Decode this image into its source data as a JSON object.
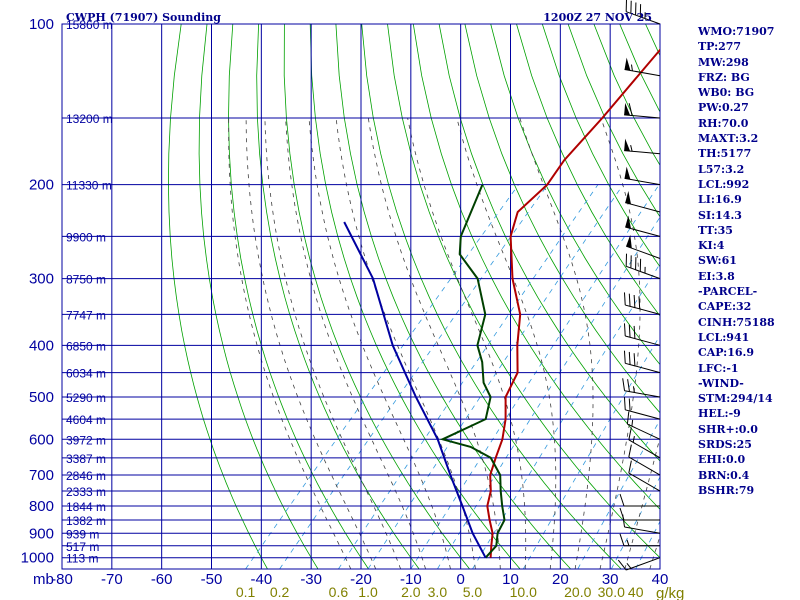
{
  "chart_data": {
    "type": "line",
    "title": "CWPH (71907) Sounding",
    "time_label": "1200Z 27 NOV 25",
    "x_axis": {
      "unit_label": "mb",
      "temp_ticks": [
        "-80",
        "-70",
        "-60",
        "-50",
        "-40",
        "-30",
        "-20",
        "-10",
        "0",
        "10",
        "20",
        "30",
        "40"
      ],
      "mixing_ratio_ticks": [
        "0.1",
        "0.2",
        "0.6",
        "1.0",
        "2.0",
        "3.0",
        "5.0",
        "10.0",
        "20.0",
        "30.0",
        "40"
      ],
      "mixing_ratio_unit": "g/kg",
      "xlim": [
        -80,
        40
      ]
    },
    "y_axis": {
      "scale": "log",
      "pressure_ticks": [
        "100",
        "200",
        "300",
        "400",
        "500",
        "600",
        "700",
        "800",
        "900",
        "1000"
      ],
      "ylim": [
        100,
        1050
      ]
    },
    "height_labels": [
      {
        "p": 100,
        "label": "15860 m"
      },
      {
        "p": 150,
        "label": "13200 m"
      },
      {
        "p": 200,
        "label": "11330 m"
      },
      {
        "p": 250,
        "label": "9900 m"
      },
      {
        "p": 300,
        "label": "8750 m"
      },
      {
        "p": 350,
        "label": "7747 m"
      },
      {
        "p": 400,
        "label": "6850 m"
      },
      {
        "p": 450,
        "label": "6034 m"
      },
      {
        "p": 500,
        "label": "5290 m"
      },
      {
        "p": 550,
        "label": "4604 m"
      },
      {
        "p": 600,
        "label": "3972 m"
      },
      {
        "p": 650,
        "label": "3387 m"
      },
      {
        "p": 700,
        "label": "2846 m"
      },
      {
        "p": 750,
        "label": "2333 m"
      },
      {
        "p": 800,
        "label": "1844 m"
      },
      {
        "p": 850,
        "label": "1382 m"
      },
      {
        "p": 900,
        "label": "939 m"
      },
      {
        "p": 950,
        "label": "517 m"
      },
      {
        "p": 1000,
        "label": "113 m"
      }
    ],
    "series": [
      {
        "color": "#b00000",
        "points": [
          [
            -52,
            100
          ],
          [
            -51,
            150
          ],
          [
            -51,
            180
          ],
          [
            -50,
            200
          ],
          [
            -51,
            225
          ],
          [
            -48,
            250
          ],
          [
            -40,
            300
          ],
          [
            -32,
            350
          ],
          [
            -27,
            400
          ],
          [
            -22,
            450
          ],
          [
            -20,
            500
          ],
          [
            -16,
            550
          ],
          [
            -13,
            600
          ],
          [
            -11,
            650
          ],
          [
            -9,
            700
          ],
          [
            -6,
            750
          ],
          [
            -4,
            800
          ],
          [
            -1,
            850
          ],
          [
            2,
            900
          ],
          [
            4,
            950
          ],
          [
            6,
            1000
          ]
        ]
      },
      {
        "color": "#004000",
        "points": [
          [
            -63,
            200
          ],
          [
            -58,
            250
          ],
          [
            -55,
            270
          ],
          [
            -47,
            300
          ],
          [
            -39,
            350
          ],
          [
            -35,
            400
          ],
          [
            -31,
            430
          ],
          [
            -27,
            470
          ],
          [
            -23,
            500
          ],
          [
            -20,
            550
          ],
          [
            -25,
            600
          ],
          [
            -18,
            620
          ],
          [
            -12,
            650
          ],
          [
            -7,
            700
          ],
          [
            -4,
            750
          ],
          [
            -1,
            800
          ],
          [
            2,
            850
          ],
          [
            3,
            900
          ],
          [
            5,
            950
          ],
          [
            5,
            1000
          ]
        ]
      },
      {
        "color": "#0000a0",
        "points": [
          [
            -84,
            235
          ],
          [
            -68,
            300
          ],
          [
            -52,
            400
          ],
          [
            -38,
            500
          ],
          [
            -26,
            600
          ],
          [
            -17,
            700
          ],
          [
            -9,
            800
          ],
          [
            -2,
            900
          ],
          [
            5,
            1000
          ]
        ]
      }
    ],
    "wind_barbs": [
      {
        "p": 100,
        "dir": 290,
        "spd": 45
      },
      {
        "p": 125,
        "dir": 280,
        "spd": 55
      },
      {
        "p": 150,
        "dir": 275,
        "spd": 60
      },
      {
        "p": 175,
        "dir": 275,
        "spd": 55
      },
      {
        "p": 200,
        "dir": 280,
        "spd": 50
      },
      {
        "p": 225,
        "dir": 285,
        "spd": 50
      },
      {
        "p": 250,
        "dir": 285,
        "spd": 50
      },
      {
        "p": 275,
        "dir": 290,
        "spd": 50
      },
      {
        "p": 300,
        "dir": 290,
        "spd": 45
      },
      {
        "p": 350,
        "dir": 285,
        "spd": 40
      },
      {
        "p": 400,
        "dir": 285,
        "spd": 30
      },
      {
        "p": 450,
        "dir": 285,
        "spd": 30
      },
      {
        "p": 500,
        "dir": 280,
        "spd": 25
      },
      {
        "p": 550,
        "dir": 285,
        "spd": 20
      },
      {
        "p": 600,
        "dir": 295,
        "spd": 15
      },
      {
        "p": 650,
        "dir": 300,
        "spd": 15
      },
      {
        "p": 700,
        "dir": 300,
        "spd": 10
      },
      {
        "p": 750,
        "dir": 300,
        "spd": 10
      },
      {
        "p": 800,
        "dir": 270,
        "spd": 10
      },
      {
        "p": 850,
        "dir": 270,
        "spd": 10
      },
      {
        "p": 900,
        "dir": 280,
        "spd": 10
      },
      {
        "p": 950,
        "dir": 270,
        "spd": 15
      },
      {
        "p": 1000,
        "dir": 250,
        "spd": 15
      }
    ],
    "grid": true,
    "legend": "none"
  },
  "indices": [
    "WMO:71907",
    "TP:277",
    "MW:298",
    "FRZ: BG",
    "WB0: BG",
    "PW:0.27",
    "RH:70.0",
    "MAXT:3.2",
    "TH:5177",
    "L57:3.2",
    "LCL:992",
    "LI:16.9",
    "SI:14.3",
    "TT:35",
    "KI:4",
    "SW:61",
    "EI:3.8",
    "-PARCEL-",
    "CAPE:32",
    "CINH:75188",
    "LCL:941",
    "CAP:16.9",
    "LFC:-1",
    "-WIND-",
    "STM:294/14",
    "HEL:-9",
    "SHR+:0.0",
    "SRDS:25",
    "EHI:0.0",
    "BRN:0.4",
    "BSHR:79"
  ],
  "colors": {
    "grid": "#0000a0",
    "dry_adiabat": "#00a000",
    "moist_adiabat": "#404040",
    "mixing_ratio": "#3399dd",
    "temperature": "#b00000",
    "dewpoint": "#004000",
    "parcel": "#0000a0",
    "axis_text": "#0000a0",
    "mr_text": "#808000"
  }
}
